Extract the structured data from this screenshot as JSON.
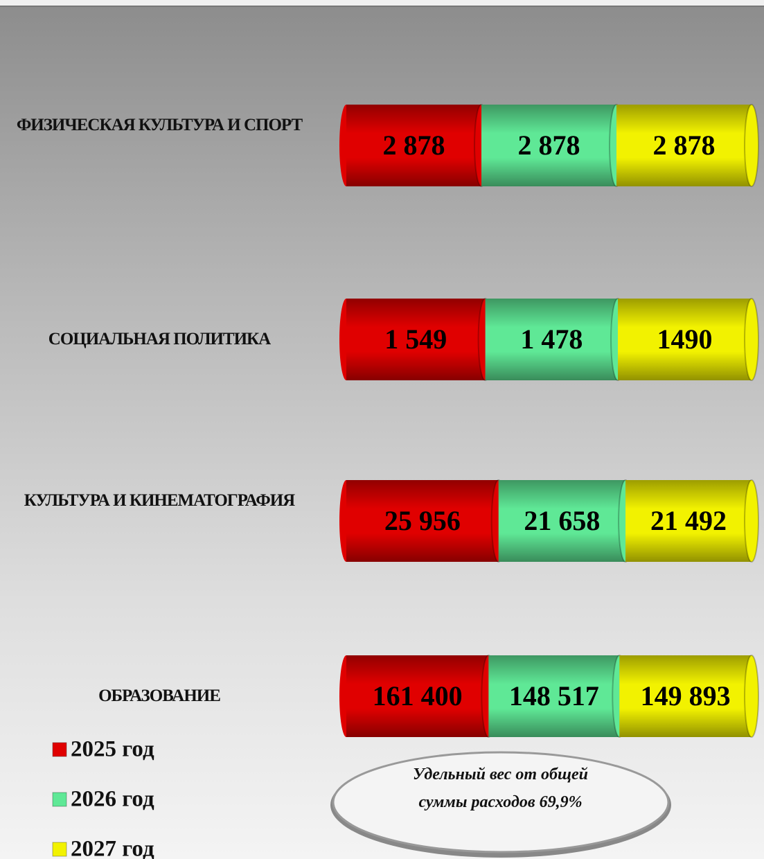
{
  "chart_data": {
    "type": "bar",
    "orientation": "horizontal",
    "stacking": "percent",
    "categories": [
      "ФИЗИЧЕСКАЯ КУЛЬТУРА И СПОРТ",
      "СОЦИАЛЬНАЯ ПОЛИТИКА",
      "КУЛЬТУРА И КИНЕМАТОГРАФИЯ",
      "ОБРАЗОВАНИЕ"
    ],
    "series": [
      {
        "name": "2025 год",
        "color": "#e00000",
        "values": [
          2878,
          1549,
          25956,
          161400
        ],
        "value_labels": [
          "2 878",
          "1 549",
          "25 956",
          "161 400"
        ]
      },
      {
        "name": "2026 год",
        "color": "#5fe896",
        "values": [
          2878,
          1478,
          21658,
          148517
        ],
        "value_labels": [
          "2 878",
          "1 478",
          "21 658",
          "148 517"
        ]
      },
      {
        "name": "2027 год",
        "color": "#f2f200",
        "values": [
          2878,
          1490,
          21492,
          149893
        ],
        "value_labels": [
          "2 878",
          "1490",
          "21 492",
          "149 893"
        ]
      }
    ],
    "legend": "bottom-left",
    "annotation": "Удельный вес от общей суммы расходов 69,9%"
  }
}
